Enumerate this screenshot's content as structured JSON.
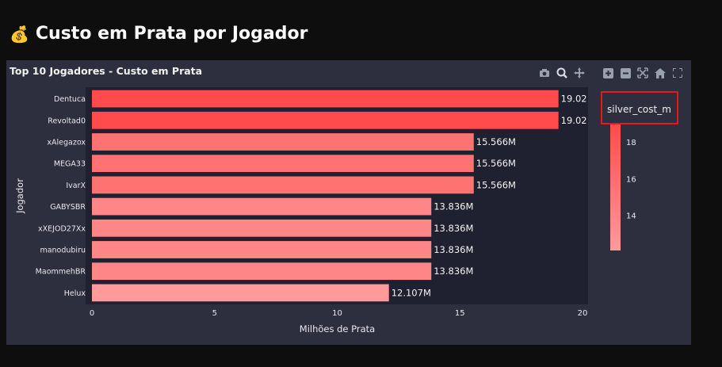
{
  "header": {
    "emoji": "💰",
    "title": "Custo em Prata por Jogador"
  },
  "toolbar": {
    "icons": [
      "camera-icon",
      "zoom-icon",
      "pan-icon",
      "zoom-in-icon",
      "zoom-out-icon",
      "autoscale-icon",
      "home-icon",
      "fullscreen-icon"
    ]
  },
  "colors": {
    "page_bg": "#0e0e0f",
    "card_bg": "#2d2f3e",
    "plot_bg": "#1f2030",
    "bar_high": "#ff4b4b",
    "bar_low": "#ff9a9a",
    "highlight_box": "#e3191b"
  },
  "chart_data": {
    "type": "bar",
    "orientation": "horizontal",
    "title": "Top 10 Jogadores - Custo em Prata",
    "xlabel": "Milhões de Prata",
    "ylabel": "Jogador",
    "xlim": [
      0,
      20
    ],
    "xticks": [
      0,
      5,
      10,
      15,
      20
    ],
    "categories": [
      "Dentuca",
      "Revoltad0",
      "xAlegazox",
      "MEGA33",
      "IvarX",
      "GABYSBR",
      "xXEJOD27Xx",
      "manodubiru",
      "MaommehBR",
      "Helux"
    ],
    "values": [
      19.02,
      19.02,
      15.566,
      15.566,
      15.566,
      13.836,
      13.836,
      13.836,
      13.836,
      12.107
    ],
    "labels": [
      "19.02",
      "19.02",
      "15.566M",
      "15.566M",
      "15.566M",
      "13.836M",
      "13.836M",
      "13.836M",
      "13.836M",
      "12.107M"
    ],
    "colorbar": {
      "title": "silver_cost_m",
      "ticks": [
        14,
        16,
        18
      ],
      "range": [
        12.107,
        19.02
      ]
    },
    "grid": false
  }
}
